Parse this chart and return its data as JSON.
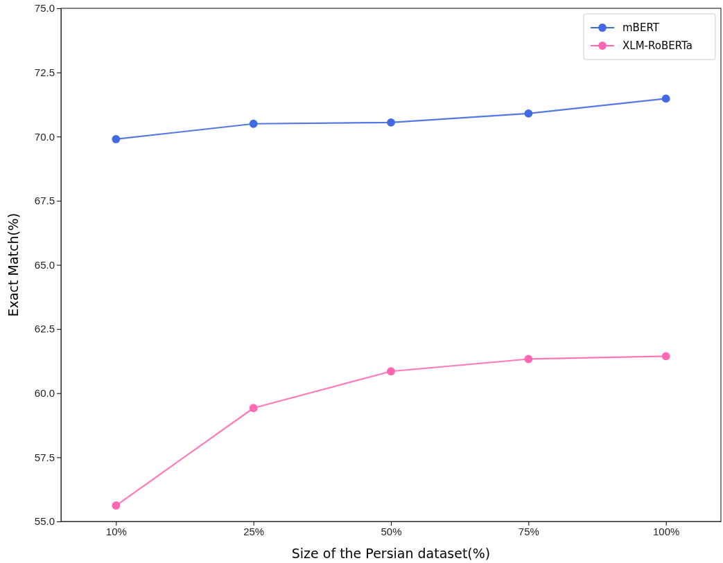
{
  "chart_data": {
    "type": "line",
    "xlabel": "Size of the Persian dataset(%)",
    "ylabel": "Exact Match(%)",
    "categories": [
      "10%",
      "25%",
      "50%",
      "75%",
      "100%"
    ],
    "series": [
      {
        "name": "mBERT",
        "color": "#4169e1",
        "values": [
          69.9,
          70.5,
          70.55,
          70.9,
          71.48
        ]
      },
      {
        "name": "XLM-RoBERTa",
        "color": "#ff69b4",
        "values": [
          55.62,
          59.42,
          60.85,
          61.33,
          61.44
        ]
      }
    ],
    "ylim": [
      55,
      75
    ],
    "yticks": [
      {
        "value": 55,
        "label": "55.0"
      },
      {
        "value": 57.5,
        "label": "57.5"
      },
      {
        "value": 60,
        "label": "60.0"
      },
      {
        "value": 62.5,
        "label": "62.5"
      },
      {
        "value": 65,
        "label": "65.0"
      },
      {
        "value": 67.5,
        "label": "67.5"
      },
      {
        "value": 70,
        "label": "70.0"
      },
      {
        "value": 72.5,
        "label": "72.5"
      },
      {
        "value": 75,
        "label": "75.0"
      }
    ],
    "grid": false,
    "legend": "top right",
    "marker": "circle",
    "line_style": "solid"
  }
}
